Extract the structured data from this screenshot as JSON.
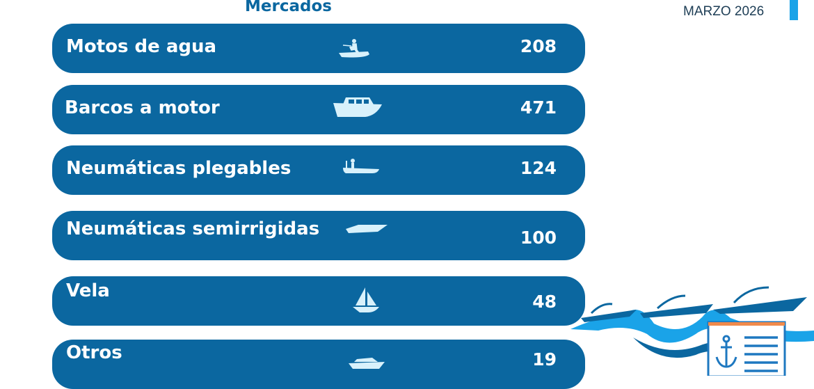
{
  "header": {
    "title": "Mercados",
    "date": "MARZO 2026"
  },
  "colors": {
    "bar": "#0b67a0",
    "accent": "#1aa3e8",
    "light": "#d8f1fb"
  },
  "rows": [
    {
      "label": "Motos de agua",
      "value": "208",
      "icon": "jet-ski-icon"
    },
    {
      "label": "Barcos a motor",
      "value": "471",
      "icon": "motor-boat-icon"
    },
    {
      "label": "Neumáticas plegables",
      "value": "124",
      "icon": "inflatable-boat-icon"
    },
    {
      "label": "Neumáticas semirrigidas",
      "value": "100",
      "icon": "speedboat-icon"
    },
    {
      "label": "Vela",
      "value": "48",
      "icon": "sailboat-icon"
    },
    {
      "label": "Otros",
      "value": "19",
      "icon": "yacht-icon"
    }
  ]
}
